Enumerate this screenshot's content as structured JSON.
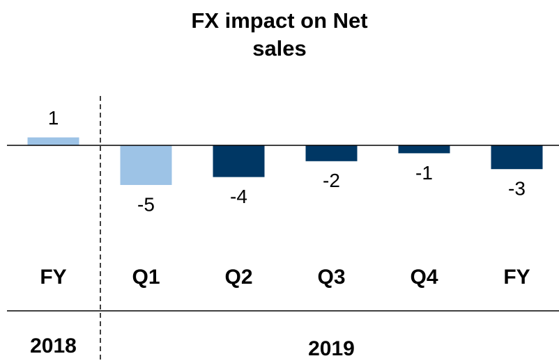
{
  "chart_data": {
    "type": "bar",
    "title": "FX impact on Net sales",
    "categories": [
      "FY",
      "Q1",
      "Q2",
      "Q3",
      "Q4",
      "FY"
    ],
    "values": [
      1,
      -5,
      -4,
      -2,
      -1,
      -3
    ],
    "colors": [
      "#9dc3e6",
      "#9dc3e6",
      "#003764",
      "#003764",
      "#003764",
      "#003764"
    ],
    "groups": [
      "2018",
      "2019"
    ]
  }
}
